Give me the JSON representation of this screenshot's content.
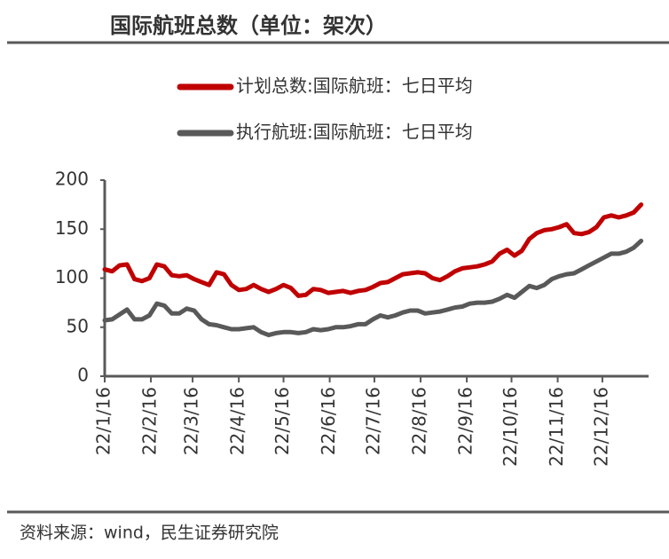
{
  "chart_data": {
    "type": "line",
    "title": "国际航班总数（单位：架次）",
    "source": "资料来源：wind，民生证券研究院",
    "x": [
      "22/1/16",
      "22/1/21",
      "22/1/26",
      "22/1/31",
      "22/2/5",
      "22/2/10",
      "22/2/15",
      "22/2/20",
      "22/2/25",
      "22/3/2",
      "22/3/7",
      "22/3/12",
      "22/3/17",
      "22/3/22",
      "22/3/27",
      "22/4/1",
      "22/4/6",
      "22/4/11",
      "22/4/16",
      "22/4/21",
      "22/4/26",
      "22/5/1",
      "22/5/6",
      "22/5/11",
      "22/5/16",
      "22/5/21",
      "22/5/26",
      "22/5/31",
      "22/6/5",
      "22/6/10",
      "22/6/15",
      "22/6/20",
      "22/6/25",
      "22/6/30",
      "22/7/5",
      "22/7/10",
      "22/7/15",
      "22/7/20",
      "22/7/25",
      "22/7/30",
      "22/8/4",
      "22/8/9",
      "22/8/14",
      "22/8/19",
      "22/8/24",
      "22/8/29",
      "22/9/3",
      "22/9/8",
      "22/9/13",
      "22/9/18",
      "22/9/23",
      "22/9/28",
      "22/10/3",
      "22/10/8",
      "22/10/13",
      "22/10/18",
      "22/10/23",
      "22/10/28",
      "22/11/2",
      "22/11/7",
      "22/11/12",
      "22/11/17",
      "22/11/22",
      "22/11/27",
      "22/12/2",
      "22/12/7",
      "22/12/12",
      "22/12/17",
      "22/12/22",
      "22/12/27",
      "23/1/1",
      "23/1/6",
      "23/1/11"
    ],
    "series": [
      {
        "name": "计划总数:国际航班：七日平均",
        "color": "#c00000",
        "values": [
          109,
          107,
          113,
          114,
          99,
          97,
          100,
          114,
          112,
          103,
          102,
          103,
          99,
          96,
          93,
          106,
          104,
          93,
          88,
          89,
          93,
          89,
          86,
          89,
          93,
          90,
          82,
          83,
          89,
          88,
          85,
          86,
          87,
          85,
          87,
          88,
          91,
          95,
          96,
          100,
          104,
          105,
          106,
          105,
          100,
          98,
          102,
          107,
          110,
          111,
          112,
          114,
          117,
          125,
          129,
          123,
          128,
          140,
          146,
          149,
          150,
          152,
          155,
          146,
          145,
          147,
          152,
          162,
          164,
          162,
          164,
          167,
          175
        ]
      },
      {
        "name": "执行航班:国际航班：七日平均",
        "color": "#595959",
        "values": [
          57,
          58,
          63,
          68,
          58,
          58,
          62,
          74,
          72,
          64,
          64,
          69,
          67,
          58,
          53,
          52,
          50,
          48,
          48,
          49,
          50,
          45,
          42,
          44,
          45,
          45,
          44,
          45,
          48,
          47,
          48,
          50,
          50,
          51,
          53,
          53,
          58,
          62,
          60,
          62,
          65,
          67,
          67,
          64,
          65,
          66,
          68,
          70,
          71,
          74,
          75,
          75,
          76,
          79,
          83,
          80,
          86,
          92,
          90,
          93,
          99,
          102,
          104,
          105,
          109,
          113,
          117,
          121,
          125,
          125,
          127,
          131,
          138
        ]
      }
    ],
    "xlim": [
      "22/1/16",
      "23/1/16"
    ],
    "xticks": [
      "22/1/16",
      "22/2/16",
      "22/3/16",
      "22/4/16",
      "22/5/16",
      "22/6/16",
      "22/7/16",
      "22/8/16",
      "22/9/16",
      "22/10/16",
      "22/11/16",
      "22/12/16"
    ],
    "ylim": [
      0,
      200
    ],
    "yticks": [
      0,
      50,
      100,
      150,
      200
    ],
    "grid": false,
    "legend": "top"
  }
}
